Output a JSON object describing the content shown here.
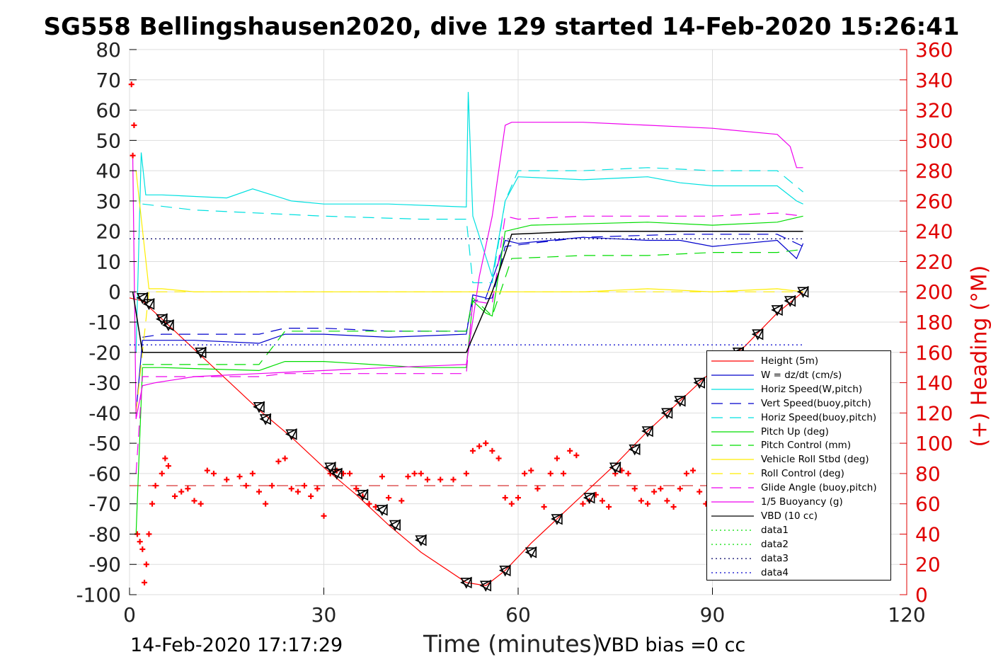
{
  "title": "SG558 Bellingshausen2020, dive 129 started 14-Feb-2020 15:26:41",
  "footer": {
    "timestamp": "14-Feb-2020 17:17:29",
    "vbd_bias": "VBD bias =0 cc"
  },
  "chart_data": {
    "type": "line",
    "xlabel": "Time (minutes)",
    "ylabel_right": "(+) Heading (°M)",
    "xlim": [
      0,
      120
    ],
    "ylim_left": [
      -100,
      80
    ],
    "ylim_right": [
      0,
      360
    ],
    "x_ticks": [
      "0",
      "30",
      "60",
      "90",
      "120"
    ],
    "y_ticks_left": [
      "80",
      "70",
      "60",
      "50",
      "40",
      "30",
      "20",
      "10",
      "0",
      "-10",
      "-20",
      "-30",
      "-40",
      "-50",
      "-60",
      "-70",
      "-80",
      "-90",
      "-100"
    ],
    "y_ticks_right": [
      "360",
      "340",
      "320",
      "300",
      "280",
      "260",
      "240",
      "220",
      "200",
      "180",
      "160",
      "140",
      "120",
      "100",
      "80",
      "60",
      "40",
      "20",
      "0"
    ],
    "grid": true,
    "legend_position": "lower-right",
    "series": [
      {
        "name": "Height (5m)",
        "color": "#ff0000",
        "style": "solid",
        "x": [
          0,
          2,
          5,
          10,
          20,
          25,
          30,
          35,
          40,
          45,
          52,
          55,
          58,
          62,
          66,
          70,
          75,
          80,
          85,
          90,
          95,
          100,
          104
        ],
        "y": [
          -2,
          -3,
          -9,
          -19,
          -39,
          -48,
          -58,
          -67,
          -77,
          -86,
          -96,
          -97,
          -92,
          -83,
          -75,
          -67,
          -57,
          -46,
          -36,
          -26,
          -18,
          -7,
          0
        ]
      },
      {
        "name": "W = dz/dt (cm/s)",
        "color": "#0000cc",
        "style": "solid",
        "x": [
          1,
          2,
          3,
          10,
          20,
          24,
          30,
          40,
          52,
          53,
          55,
          57,
          58,
          60,
          70,
          80,
          85,
          90,
          100,
          103,
          104
        ],
        "y": [
          -40,
          -16,
          -16,
          -16,
          -17,
          -14,
          -14,
          -15,
          -14,
          -1,
          -2,
          10,
          17,
          16,
          18,
          17,
          17,
          15,
          17,
          11,
          16
        ]
      },
      {
        "name": "Horiz Speed(W,pitch)",
        "color": "#00e0e0",
        "style": "solid",
        "x": [
          1,
          1.8,
          2.5,
          5,
          15,
          19,
          25,
          30,
          40,
          52,
          52.3,
          53,
          56,
          58,
          60,
          70,
          80,
          85,
          90,
          100,
          103,
          104
        ],
        "y": [
          -20,
          46,
          32,
          32,
          31,
          34,
          30,
          29,
          29,
          28,
          66,
          25,
          5,
          30,
          38,
          37,
          38,
          36,
          35,
          35,
          30,
          29
        ]
      },
      {
        "name": "Vert Speed(buoy,pitch)",
        "color": "#0000cc",
        "style": "dashed",
        "x": [
          2,
          5,
          20,
          24,
          30,
          40,
          52,
          53,
          56,
          58,
          70,
          85,
          100,
          104
        ],
        "y": [
          -15,
          -14,
          -14,
          -12,
          -12,
          -13,
          -13,
          -3,
          -2,
          15,
          18,
          19,
          19,
          15
        ]
      },
      {
        "name": "Horiz Speed(buoy,pitch)",
        "color": "#00e0e0",
        "style": "dashed",
        "x": [
          2,
          10,
          20,
          30,
          45,
          52,
          53,
          56,
          58,
          60,
          70,
          80,
          90,
          100,
          104
        ],
        "y": [
          29,
          27,
          26,
          25,
          24,
          24,
          3,
          3,
          30,
          40,
          40,
          41,
          40,
          40,
          33
        ]
      },
      {
        "name": "Pitch Up (deg)",
        "color": "#00dd00",
        "style": "solid",
        "x": [
          1,
          2,
          5,
          20,
          24,
          30,
          45,
          52,
          53,
          55,
          56,
          58,
          62,
          80,
          90,
          100,
          104
        ],
        "y": [
          -80,
          -25,
          -25,
          -26,
          -23,
          -23,
          -25,
          -25,
          -3,
          -7,
          -8,
          20,
          22,
          23,
          22,
          23,
          25
        ]
      },
      {
        "name": "Pitch Control (mm)",
        "color": "#00dd00",
        "style": "dashed",
        "x": [
          2,
          10,
          20,
          24,
          30,
          45,
          52,
          53,
          56,
          59,
          70,
          80,
          90,
          100,
          104
        ],
        "y": [
          -24,
          -24,
          -24,
          -13,
          -13,
          -13,
          -13,
          -2,
          -8,
          11,
          12,
          12,
          13,
          13,
          14
        ]
      },
      {
        "name": "Vehicle Roll Stbd (deg)",
        "color": "#ffee00",
        "style": "solid",
        "x": [
          1,
          3,
          5,
          10,
          20,
          30,
          40,
          50,
          52,
          60,
          70,
          80,
          90,
          100,
          104
        ],
        "y": [
          40,
          1,
          1,
          0,
          0,
          0,
          0,
          0,
          0,
          0,
          0,
          1,
          0,
          1,
          0
        ]
      },
      {
        "name": "Roll Control (deg)",
        "color": "#ffee00",
        "style": "dashed",
        "x": [
          1,
          3,
          5,
          10,
          20,
          30,
          40,
          50,
          52,
          60,
          70,
          80,
          90,
          100,
          104
        ],
        "y": [
          -40,
          0,
          0,
          0,
          0,
          0,
          0,
          0,
          0,
          0,
          0,
          0,
          0,
          0,
          0
        ]
      },
      {
        "name": "Glide Angle (buoy,pitch)",
        "color": "#ee00ee",
        "style": "dashed",
        "x": [
          1,
          2,
          5,
          20,
          24,
          30,
          45,
          52,
          53,
          56,
          58,
          60,
          70,
          80,
          90,
          100,
          104
        ],
        "y": [
          -60,
          -28,
          -28,
          -28,
          -27,
          -27,
          -27,
          -27,
          -3,
          -4,
          25,
          24,
          25,
          25,
          25,
          26,
          25
        ]
      },
      {
        "name": "1/5 Buoyancy (g)",
        "color": "#ee00ee",
        "style": "solid",
        "x": [
          0.5,
          1,
          2,
          4,
          10,
          20,
          30,
          40,
          52,
          54,
          56,
          58,
          59,
          70,
          80,
          90,
          100,
          102,
          103,
          104
        ],
        "y": [
          44,
          -42,
          -31,
          -30,
          -28,
          -27,
          -26,
          -25,
          -24,
          5,
          25,
          55,
          56,
          56,
          55,
          54,
          52,
          48,
          41,
          41
        ]
      },
      {
        "name": "VBD (10 cc)",
        "color": "#000000",
        "style": "solid",
        "x": [
          0.5,
          2,
          5,
          10,
          20,
          30,
          40,
          52,
          56,
          59,
          70,
          80,
          90,
          100,
          104
        ],
        "y": [
          0,
          -20,
          -20,
          -20,
          -20,
          -20,
          -20,
          -20,
          0,
          19,
          20,
          20,
          20,
          20,
          20
        ]
      },
      {
        "name": "data1",
        "color": "#00dd00",
        "style": "dotted",
        "x": [],
        "y": []
      },
      {
        "name": "data2",
        "color": "#00dd00",
        "style": "dotted",
        "x": [],
        "y": []
      },
      {
        "name": "data3",
        "color": "#000066",
        "style": "dotted",
        "x": [
          0,
          104
        ],
        "y": [
          17.5,
          17.5
        ]
      },
      {
        "name": "data4",
        "color": "#0000cc",
        "style": "dotted",
        "x": [
          0,
          104
        ],
        "y": [
          -17.5,
          -17.5
        ]
      }
    ],
    "heading_series": {
      "color": "#ff0000",
      "marker": "+",
      "axis": "right",
      "x": [
        0.3,
        0.5,
        0.7,
        1.2,
        1.6,
        2.0,
        2.3,
        2.6,
        3.0,
        3.5,
        4.0,
        5.0,
        5.5,
        6.0,
        7.0,
        8.0,
        9.0,
        10.0,
        11.0,
        12.0,
        13.0,
        15.0,
        17.0,
        18.0,
        19.0,
        20.0,
        21.0,
        22.0,
        23.0,
        24.0,
        25.0,
        26.0,
        27.0,
        28.0,
        29.0,
        30.0,
        31.0,
        32.0,
        33.0,
        34.0,
        35.0,
        36.0,
        37.0,
        38.0,
        39.0,
        40.0,
        42.0,
        43.0,
        44.0,
        45.0,
        46.0,
        48.0,
        50.0,
        52.0,
        53.0,
        54.0,
        55.0,
        56.0,
        57.0,
        58.0,
        59.0,
        60.0,
        61.0,
        62.0,
        63.0,
        64.0,
        65.0,
        66.0,
        67.0,
        68.0,
        69.0,
        70.0,
        71.0,
        72.0,
        73.0,
        74.0,
        75.0,
        76.0,
        77.0,
        78.0,
        79.0,
        80.0,
        81.0,
        82.0,
        83.0,
        84.0,
        85.0,
        86.0,
        87.0,
        88.0,
        89.0,
        90.0,
        92.0,
        93.0,
        94.0
      ],
      "y": [
        337,
        290,
        310,
        40,
        35,
        30,
        8,
        20,
        40,
        60,
        72,
        80,
        90,
        85,
        65,
        68,
        70,
        62,
        60,
        82,
        80,
        76,
        78,
        72,
        80,
        68,
        60,
        72,
        88,
        90,
        70,
        68,
        72,
        65,
        70,
        52,
        80,
        82,
        80,
        80,
        70,
        65,
        60,
        58,
        78,
        64,
        62,
        78,
        80,
        80,
        76,
        76,
        76,
        80,
        95,
        98,
        100,
        95,
        90,
        64,
        60,
        64,
        80,
        82,
        70,
        58,
        80,
        90,
        80,
        95,
        92,
        60,
        62,
        66,
        62,
        58,
        80,
        82,
        80,
        70,
        62,
        60,
        68,
        70,
        62,
        58,
        70,
        80,
        82,
        68,
        60,
        62,
        66,
        64,
        62
      ]
    },
    "heading_dash_level": 72,
    "height_markers": {
      "x": [
        2,
        3,
        5,
        6,
        11,
        20,
        21,
        25,
        31,
        32,
        36,
        39,
        41,
        45,
        52,
        55,
        58,
        62,
        66,
        71,
        75,
        78,
        80,
        83,
        85,
        88,
        94,
        97,
        100,
        102,
        104
      ],
      "y": [
        -2,
        -4,
        -9,
        -11,
        -20,
        -38,
        -42,
        -47,
        -58,
        -60,
        -67,
        -72,
        -77,
        -82,
        -96,
        -97,
        -92,
        -86,
        -75,
        -68,
        -58,
        -52,
        -46,
        -40,
        -36,
        -30,
        -20,
        -14,
        -6,
        -3,
        0
      ]
    }
  }
}
